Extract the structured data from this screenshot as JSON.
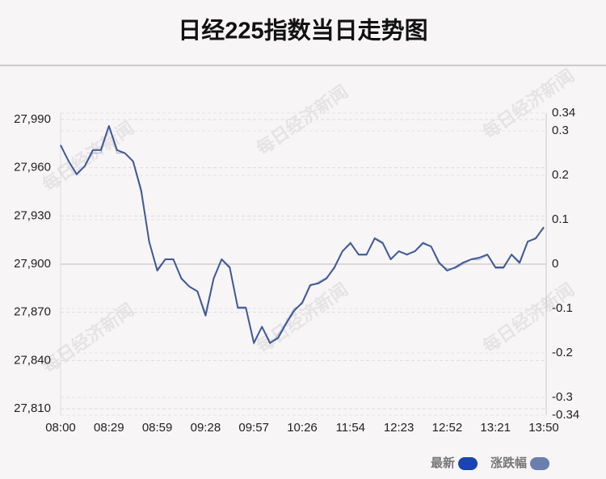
{
  "chart_data": {
    "type": "line",
    "title": "日经225指数当日走势图",
    "watermark": "每日经济新闻",
    "categories": [
      "08:00",
      null,
      null,
      null,
      null,
      null,
      "08:29",
      null,
      null,
      null,
      null,
      null,
      "08:59",
      null,
      null,
      null,
      null,
      null,
      "09:28",
      null,
      null,
      null,
      null,
      null,
      "09:57",
      null,
      null,
      null,
      null,
      null,
      "10:26",
      null,
      null,
      null,
      null,
      null,
      "11:54",
      null,
      null,
      null,
      null,
      null,
      "12:23",
      null,
      null,
      null,
      null,
      null,
      "12:52",
      null,
      null,
      null,
      null,
      null,
      "13:21",
      null,
      null,
      null,
      null,
      null,
      "13:50"
    ],
    "series": [
      {
        "name": "最新",
        "color": "#1a44b0",
        "values": [
          27974,
          27964,
          27956,
          27961,
          27971,
          27971,
          27986,
          27971,
          27969,
          27964,
          27946,
          27914,
          27896,
          27903,
          27903,
          27891,
          27886,
          27883,
          27868,
          27891,
          27903,
          27898,
          27873,
          27873,
          27851,
          27861,
          27851,
          27854,
          27863,
          27871,
          27876,
          27887,
          27888,
          27891,
          27898,
          27908,
          27913,
          27906,
          27906,
          27916,
          27913,
          27903,
          27908,
          27906,
          27908,
          27913,
          27911,
          27901,
          27896,
          27898,
          27901,
          27903,
          27904,
          27906,
          27898,
          27898,
          27906,
          27901,
          27914,
          27916,
          27923
        ]
      },
      {
        "name": "涨跌幅",
        "color": "#6a7fae",
        "axis": "y2",
        "values": [
          0.27,
          0.23,
          0.2,
          0.22,
          0.25,
          0.25,
          0.31,
          0.25,
          0.25,
          0.23,
          0.16,
          0.05,
          -0.01,
          0.01,
          0.01,
          -0.03,
          -0.05,
          -0.06,
          -0.11,
          -0.03,
          0.01,
          -0.01,
          -0.1,
          -0.1,
          -0.18,
          -0.14,
          -0.18,
          -0.16,
          -0.13,
          -0.1,
          -0.09,
          -0.05,
          -0.04,
          -0.03,
          -0.01,
          0.03,
          0.05,
          0.02,
          0.02,
          0.06,
          0.05,
          0.01,
          0.03,
          0.02,
          0.03,
          0.05,
          0.04,
          0,
          -0.01,
          -0.01,
          0,
          0.01,
          0.01,
          0.02,
          -0.01,
          -0.01,
          0.02,
          0,
          0.05,
          0.06,
          0.08
        ]
      }
    ],
    "ylim": [
      27806,
      27994
    ],
    "yticks": [
      {
        "value": 27810,
        "label": "27,810"
      },
      {
        "value": 27840,
        "label": "27,840"
      },
      {
        "value": 27870,
        "label": "27,870"
      },
      {
        "value": 27900,
        "label": "27,900"
      },
      {
        "value": 27930,
        "label": "27,930"
      },
      {
        "value": 27960,
        "label": "27,960"
      },
      {
        "value": 27990,
        "label": "27,990"
      }
    ],
    "y2lim": [
      -0.34,
      0.34
    ],
    "y2ticks": [
      -0.34,
      -0.3,
      -0.2,
      -0.1,
      0,
      0.1,
      0.2,
      0.3,
      0.34
    ],
    "grid": true
  }
}
